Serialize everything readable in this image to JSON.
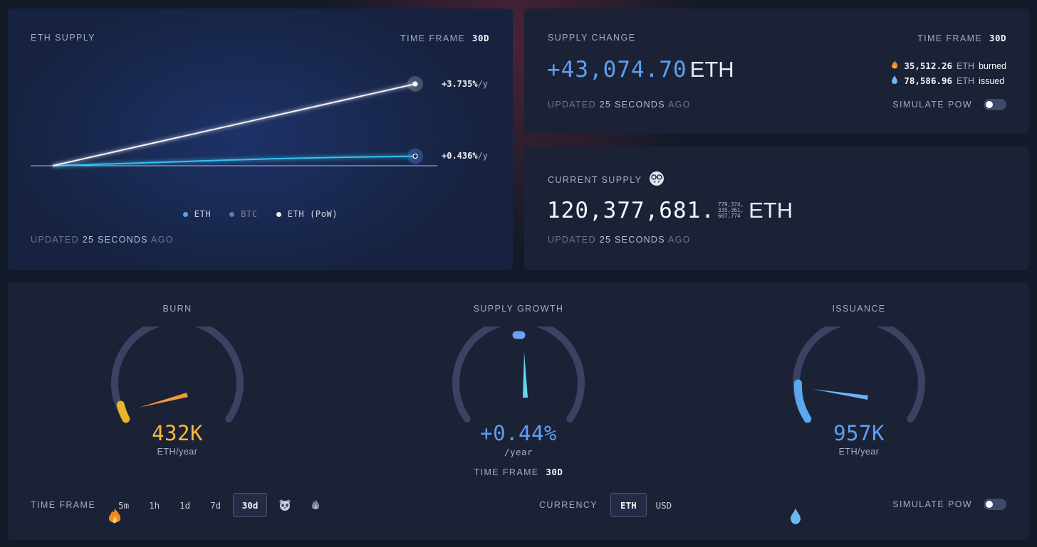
{
  "supply_chart": {
    "title": "ETH SUPPLY",
    "timeframe_label": "TIME FRAME",
    "timeframe_value": "30d",
    "pow_rate": "+3.735%",
    "pow_rate_unit": "/y",
    "eth_rate": "+0.436%",
    "eth_rate_unit": "/y",
    "legend": [
      {
        "label": "ETH",
        "color": "#5e9ff0"
      },
      {
        "label": "BTC",
        "color": "#6f7893"
      },
      {
        "label": "ETH (PoW)",
        "color": "#eef0f6"
      }
    ],
    "updated_prefix": "UPDATED",
    "updated_value": "25 SECONDS",
    "updated_suffix": "AGO"
  },
  "chart_data": {
    "type": "line",
    "title": "ETH SUPPLY",
    "xlabel": "",
    "ylabel": "",
    "x": [
      0,
      1
    ],
    "series": [
      {
        "name": "ETH",
        "values": [
          0,
          0.436
        ],
        "color": "#36c2f0"
      },
      {
        "name": "ETH (PoW)",
        "values": [
          0,
          3.735
        ],
        "color": "#f1f2f7"
      }
    ],
    "ylim": [
      0,
      3.735
    ],
    "grid": false,
    "legend_position": "bottom"
  },
  "supply_change": {
    "title": "SUPPLY CHANGE",
    "timeframe_label": "TIME FRAME",
    "timeframe_value": "30d",
    "value": "+43,074.70",
    "unit": "ETH",
    "burned_value": "35,512.26",
    "burned_unit": "ETH",
    "burned_word": "burned",
    "issued_value": "78,586.96",
    "issued_unit": "ETH",
    "issued_word": "issued",
    "updated_prefix": "UPDATED",
    "updated_value": "25 SECONDS",
    "updated_suffix": "AGO",
    "simulate_label": "SIMULATE PoW"
  },
  "current_supply": {
    "title": "CURRENT SUPPLY",
    "value_main": "120,377,681.",
    "fraction_line1": "779,374,",
    "fraction_line2": "335,361,",
    "fraction_line3": "607,774",
    "unit": "ETH",
    "updated_prefix": "UPDATED",
    "updated_value": "25 SECONDS",
    "updated_suffix": "AGO"
  },
  "gauges": {
    "burn": {
      "title": "BURN",
      "value": "432K",
      "unit": "ETH/year",
      "level": 0.1,
      "color": "#f6b73c"
    },
    "growth": {
      "title": "SUPPLY GROWTH",
      "value": "+0.44%",
      "unit": "/year",
      "timeframe_label": "TIME FRAME",
      "timeframe_value": "30d",
      "level": 0.52,
      "color": "#5e9ff0"
    },
    "issuance": {
      "title": "ISSUANCE",
      "value": "957K",
      "unit": "ETH/year",
      "level": 0.2,
      "color": "#5e9ff0"
    },
    "timeframe_label": "TIME FRAME",
    "timeframes": [
      "5m",
      "1h",
      "1d",
      "7d",
      "30d"
    ],
    "selected_timeframe": "30d",
    "currency_label": "CURRENCY",
    "currencies": [
      "ETH",
      "USD"
    ],
    "selected_currency": "ETH",
    "simulate_label": "SIMULATE PoW"
  }
}
